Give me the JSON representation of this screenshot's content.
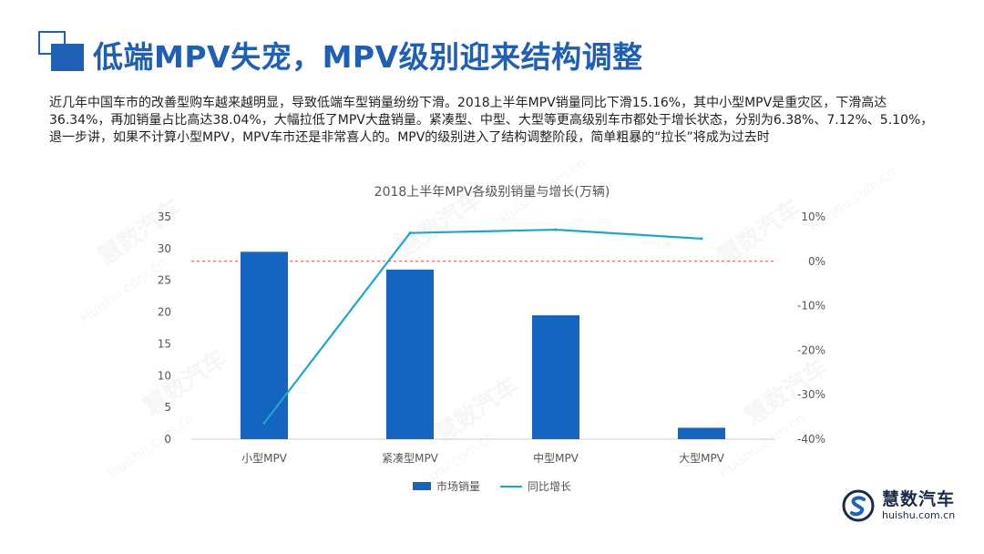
{
  "title": "低端MPV失宠，MPV级别迎来结构调整",
  "intro": "近几年中国车市的改善型购车越来越明显，导致低端车型销量纷纷下滑。2018上半年MPV销量同比下滑15.16%，其中小型MPV是重灾区，下滑高达36.34%，再加销量占比高达38.04%，大幅拉低了MPV大盘销量。紧凑型、中型、大型等更高级别车市都处于增长状态，分别为6.38%、7.12%、5.10%，退一步讲，如果不计算小型MPV，MPV车市还是非常喜人的。MPV的级别进入了结构调整阶段，简单粗暴的“拉长”将成为过去时",
  "watermark": {
    "text": "慧数汽车",
    "url": "Huishu.com.cn"
  },
  "logo": {
    "name": "慧数汽车",
    "url": "huishu.com.cn"
  },
  "chart_data": {
    "type": "bar+line",
    "title": "2018上半年MPV各级别销量与增长(万辆)",
    "categories": [
      "小型MPV",
      "紧凑型MPV",
      "中型MPV",
      "大型MPV"
    ],
    "series": [
      {
        "name": "市场销量",
        "type": "bar",
        "axis": "left",
        "color": "#1565c0",
        "values": [
          29.5,
          26.7,
          19.5,
          1.8
        ]
      },
      {
        "name": "同比增长",
        "type": "line",
        "axis": "right",
        "color": "#1aa7cf",
        "values": [
          -36.34,
          6.38,
          7.12,
          5.1
        ]
      }
    ],
    "y_left": {
      "min": 0,
      "max": 35,
      "ticks": [
        "35",
        "30",
        "25",
        "20",
        "15",
        "10",
        "5",
        "0"
      ]
    },
    "y_right": {
      "min": -40,
      "max": 10,
      "ticks": [
        "10%",
        "0%",
        "-10%",
        "-20%",
        "-30%",
        "-40%"
      ]
    },
    "reference_line": {
      "value": 0,
      "axis": "right",
      "color": "#d9534f",
      "style": "dashed"
    },
    "legend": {
      "position": "bottom"
    }
  }
}
